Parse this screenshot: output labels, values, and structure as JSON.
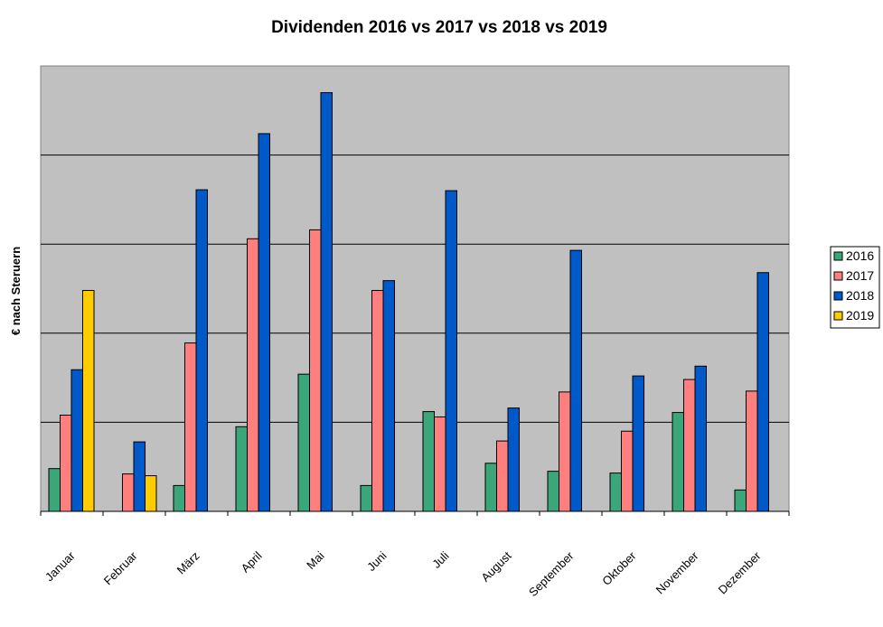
{
  "chart_data": {
    "type": "bar",
    "title": "Dividenden 2016 vs 2017 vs 2018 vs 2019",
    "xlabel": "",
    "ylabel": "€ nach Steruern",
    "ylim": [
      0,
      500
    ],
    "yticks_shown": false,
    "grid": true,
    "legend_position": "right",
    "categories": [
      "Januar",
      "Februar",
      "März",
      "April",
      "Mai",
      "Juni",
      "Juli",
      "August",
      "September",
      "Oktober",
      "November",
      "Dezember"
    ],
    "series": [
      {
        "name": "2016",
        "color": "#3aa67a",
        "values": [
          48,
          null,
          29,
          95,
          154,
          29,
          112,
          54,
          45,
          43,
          111,
          24
        ]
      },
      {
        "name": "2017",
        "color": "#ff7f7f",
        "values": [
          108,
          42,
          189,
          306,
          316,
          248,
          106,
          79,
          134,
          90,
          148,
          135
        ]
      },
      {
        "name": "2018",
        "color": "#0059c8",
        "values": [
          159,
          78,
          361,
          424,
          470,
          259,
          360,
          116,
          293,
          152,
          163,
          268
        ]
      },
      {
        "name": "2019",
        "color": "#ffcc00",
        "values": [
          248,
          40,
          null,
          null,
          null,
          null,
          null,
          null,
          null,
          null,
          null,
          null
        ]
      }
    ]
  }
}
